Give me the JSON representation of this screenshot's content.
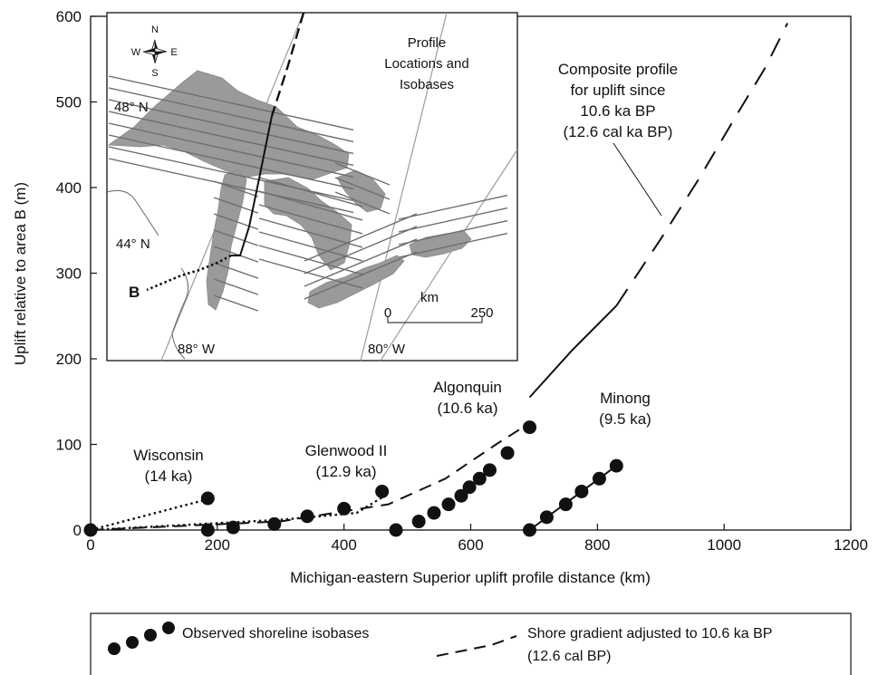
{
  "chart_data": {
    "type": "scatter",
    "xlabel": "Michigan-eastern Superior uplift profile distance (km)",
    "ylabel": "Uplift relative to area B (m)",
    "xlim": [
      0,
      1200
    ],
    "ylim": [
      0,
      600
    ],
    "x_ticks": [
      "0",
      "200",
      "400",
      "600",
      "800",
      "1000",
      "1200"
    ],
    "y_ticks": [
      "0",
      "100",
      "200",
      "300",
      "400",
      "500",
      "600"
    ],
    "grid": false,
    "series": [
      {
        "name": "Wisconsin",
        "label": [
          "Wisconsin",
          "(14 ka)"
        ],
        "points": [
          [
            0,
            0
          ],
          [
            185,
            37
          ]
        ],
        "fit_style": "dotted",
        "fit": [
          [
            0,
            0
          ],
          [
            185,
            36
          ]
        ]
      },
      {
        "name": "Glenwood II",
        "label": [
          "Glenwood II",
          "(12.9 ka)"
        ],
        "points": [
          [
            185,
            0
          ],
          [
            225,
            3
          ],
          [
            290,
            7
          ],
          [
            342,
            16
          ],
          [
            400,
            25
          ],
          [
            460,
            45
          ]
        ],
        "fit_style": "dotted",
        "fit": [
          [
            0,
            0
          ],
          [
            300,
            12
          ],
          [
            420,
            20
          ],
          [
            460,
            38
          ]
        ]
      },
      {
        "name": "Algonquin",
        "label": [
          "Algonquin",
          "(10.6 ka)"
        ],
        "points": [
          [
            482,
            0
          ],
          [
            518,
            10
          ],
          [
            542,
            20
          ],
          [
            565,
            30
          ],
          [
            585,
            40
          ],
          [
            598,
            50
          ],
          [
            614,
            60
          ],
          [
            630,
            70
          ],
          [
            658,
            90
          ],
          [
            693,
            120
          ]
        ],
        "fit_style": "dashed",
        "fit": [
          [
            0,
            0
          ],
          [
            300,
            10
          ],
          [
            470,
            30
          ],
          [
            560,
            60
          ],
          [
            640,
            100
          ],
          [
            693,
            125
          ]
        ]
      },
      {
        "name": "Minong",
        "label": [
          "Minong",
          "(9.5 ka)"
        ],
        "points": [
          [
            693,
            0
          ],
          [
            720,
            15
          ],
          [
            750,
            30
          ],
          [
            775,
            45
          ],
          [
            803,
            60
          ],
          [
            830,
            75
          ]
        ],
        "fit_style": "solid",
        "fit": [
          [
            693,
            0
          ],
          [
            830,
            75
          ]
        ]
      }
    ],
    "composite_profile": {
      "label": [
        "Composite profile",
        "for uplift since",
        "10.6 ka BP",
        "(12.6 cal ka BP)"
      ],
      "solid": [
        [
          693,
          155
        ],
        [
          760,
          210
        ],
        [
          830,
          262
        ]
      ],
      "dashed": [
        [
          830,
          262
        ],
        [
          900,
          340
        ],
        [
          960,
          410
        ],
        [
          1020,
          485
        ],
        [
          1065,
          540
        ],
        [
          1100,
          592
        ]
      ]
    },
    "legend": {
      "position": "bottom",
      "entries": [
        {
          "label": "Observed shoreline isobases",
          "marker": "circle"
        },
        {
          "label": [
            "Shore gradient adjusted to 10.6 ka BP",
            "(12.6 cal BP)"
          ],
          "marker": "dashed-line"
        }
      ]
    },
    "inset": {
      "title": [
        "Profile",
        "Locations and",
        "Isobases"
      ],
      "lat_labels": [
        "48° N",
        "44° N"
      ],
      "lon_labels": [
        "88° W",
        "80° W"
      ],
      "point_label": "B",
      "compass": [
        "N",
        "S",
        "E",
        "W"
      ],
      "scale_bar": {
        "unit": "km",
        "labels": [
          "0",
          "250"
        ]
      }
    },
    "colors": {
      "ink": "#111111",
      "land": "#9a9a9a",
      "isobase": "#7a7a7a"
    }
  }
}
